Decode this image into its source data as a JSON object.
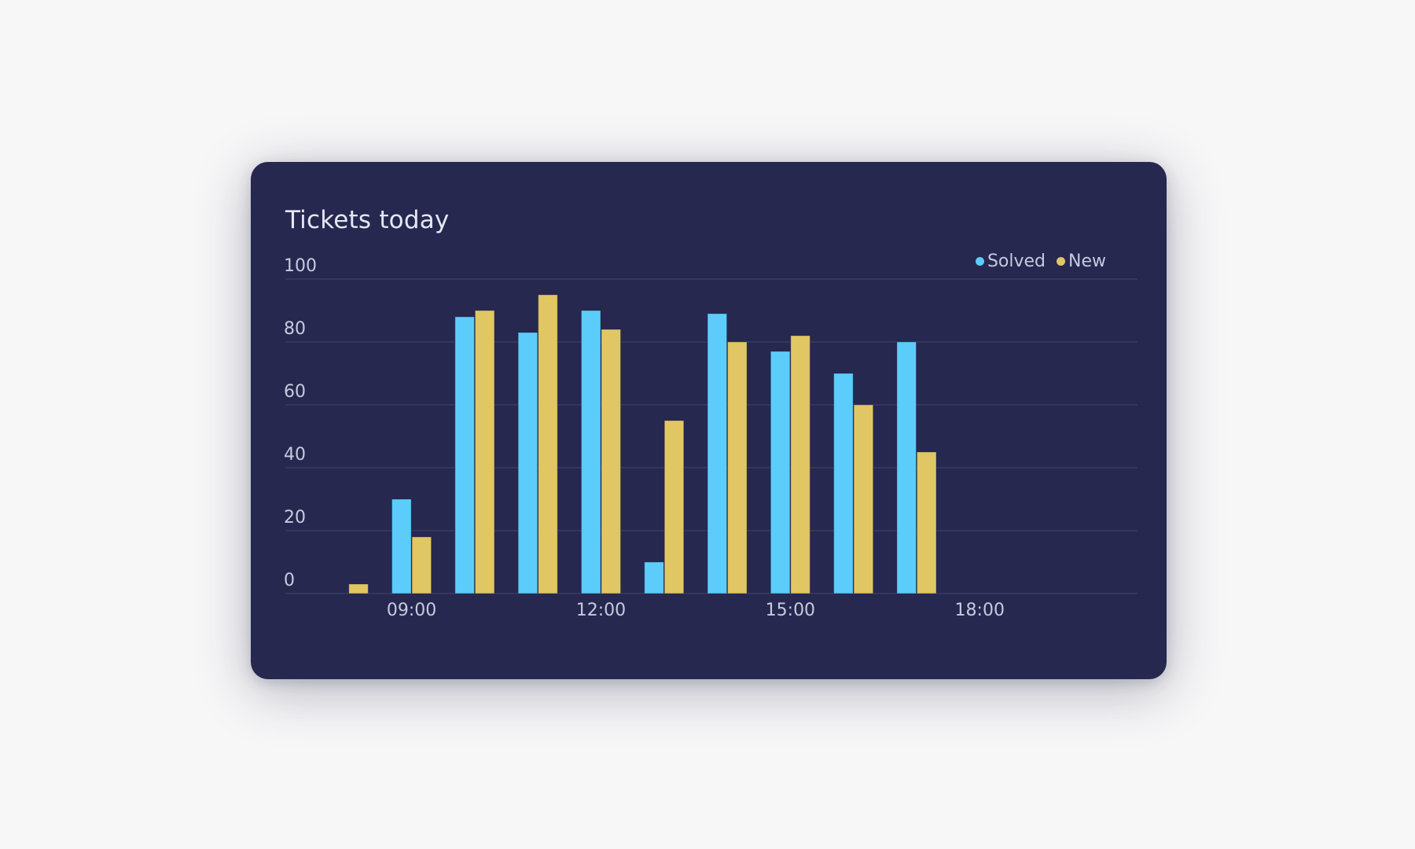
{
  "card": {
    "title": "Tickets today"
  },
  "legend": [
    {
      "label": "Solved",
      "color": "#5ccdfb"
    },
    {
      "label": "New",
      "color": "#e1c764"
    }
  ],
  "colors": {
    "background": "#f7f7f8",
    "card": "#26284f",
    "gridline": "#383b64",
    "text": "#c8cae0"
  },
  "chart_data": {
    "type": "bar",
    "title": "Tickets today",
    "xlabel": "",
    "ylabel": "",
    "ylim": [
      0,
      100
    ],
    "yticks": [
      0,
      20,
      40,
      60,
      80,
      100
    ],
    "x": [
      "08:00",
      "09:00",
      "10:00",
      "11:00",
      "12:00",
      "13:00",
      "14:00",
      "15:00",
      "16:00",
      "17:00"
    ],
    "xtick_labels": [
      "09:00",
      "12:00",
      "15:00",
      "18:00"
    ],
    "xlim": [
      "07:00",
      "20:30"
    ],
    "grid": true,
    "legend_position": "top-right",
    "series": [
      {
        "name": "Solved",
        "color": "#5ccdfb",
        "values": [
          0,
          30,
          88,
          83,
          90,
          10,
          89,
          77,
          70,
          80
        ]
      },
      {
        "name": "New",
        "color": "#e1c764",
        "values": [
          3,
          18,
          90,
          95,
          84,
          55,
          80,
          82,
          60,
          45
        ]
      }
    ]
  }
}
